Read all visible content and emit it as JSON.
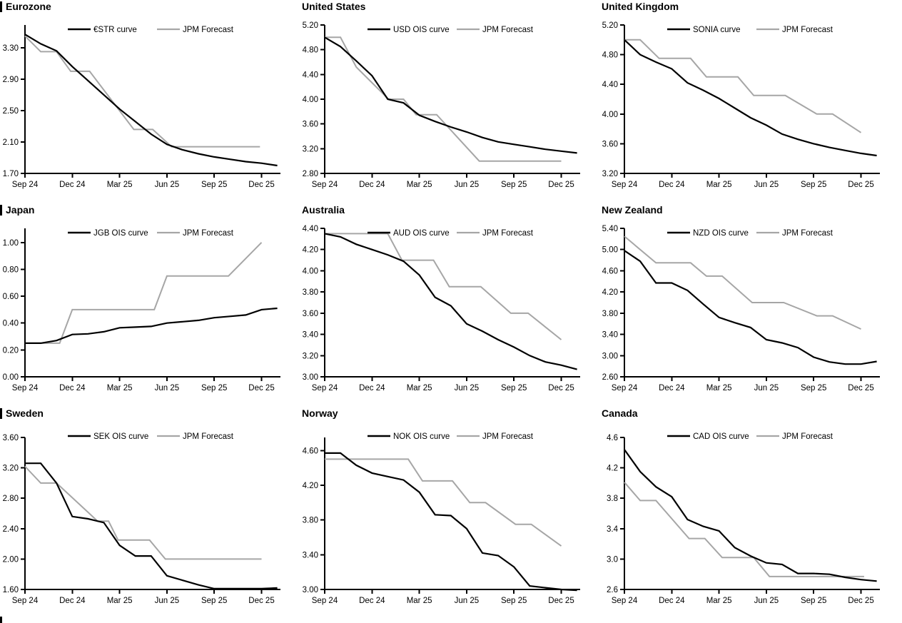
{
  "colors": {
    "actual": "#000000",
    "forecast": "#a6a6a6",
    "text": "#000000",
    "background": "#ffffff"
  },
  "forecast_label": "JPM Forecast",
  "x_axis": {
    "tick_labels": [
      "Sep 24",
      "Dec 24",
      "Mar 25",
      "Jun 25",
      "Sep 25",
      "Dec 25"
    ],
    "tick_positions": [
      0,
      3,
      6,
      9,
      12,
      15
    ],
    "unit": "months from Sep 2024"
  },
  "footer": {
    "next_section_marker": true
  },
  "chart_data": [
    {
      "type": "line",
      "title": "Eurozone",
      "section_bar": true,
      "ylim": [
        1.7,
        3.59
      ],
      "y_ticks": [
        3.3,
        2.9,
        2.5,
        2.1,
        1.7
      ],
      "y_tick_decimals": 2,
      "legend_position": "top",
      "grid": false,
      "series": [
        {
          "name": "€STR curve",
          "role": "actual",
          "x_step_months": 1,
          "values": [
            3.47,
            3.35,
            3.26,
            3.06,
            2.88,
            2.7,
            2.52,
            2.36,
            2.2,
            2.07,
            2.0,
            1.95,
            1.91,
            1.88,
            1.85,
            1.83,
            1.8
          ]
        },
        {
          "name": "JPM Forecast",
          "role": "forecast",
          "points": [
            [
              0,
              3.45
            ],
            [
              1,
              3.25
            ],
            [
              2,
              3.25
            ],
            [
              2.9,
              3.0
            ],
            [
              4.1,
              3.0
            ],
            [
              6.9,
              2.26
            ],
            [
              8.1,
              2.26
            ],
            [
              9.3,
              2.04
            ],
            [
              14.9,
              2.04
            ]
          ]
        }
      ]
    },
    {
      "type": "line",
      "title": "United States",
      "section_bar": false,
      "ylim": [
        2.8,
        5.2
      ],
      "y_ticks": [
        5.2,
        4.8,
        4.4,
        4.0,
        3.6,
        3.2,
        2.8
      ],
      "y_tick_decimals": 2,
      "legend_position": "top",
      "grid": false,
      "series": [
        {
          "name": "USD OIS curve",
          "role": "actual",
          "x_step_months": 1,
          "values": [
            5.0,
            4.85,
            4.62,
            4.38,
            4.0,
            3.94,
            3.74,
            3.64,
            3.55,
            3.47,
            3.38,
            3.31,
            3.27,
            3.23,
            3.19,
            3.16,
            3.13
          ]
        },
        {
          "name": "JPM Forecast",
          "role": "forecast",
          "points": [
            [
              0,
              5.0
            ],
            [
              1,
              5.0
            ],
            [
              2,
              4.52
            ],
            [
              4.05,
              4.0
            ],
            [
              5.0,
              4.0
            ],
            [
              5.8,
              3.75
            ],
            [
              7.1,
              3.75
            ],
            [
              9.8,
              3.0
            ],
            [
              15,
              3.0
            ]
          ]
        }
      ]
    },
    {
      "type": "line",
      "title": "United Kingdom",
      "section_bar": false,
      "ylim": [
        3.2,
        5.2
      ],
      "y_ticks": [
        5.2,
        4.8,
        4.4,
        4.0,
        3.6,
        3.2
      ],
      "y_tick_decimals": 2,
      "legend_position": "top",
      "grid": false,
      "series": [
        {
          "name": "SONIA curve",
          "role": "actual",
          "x_step_months": 1,
          "values": [
            5.0,
            4.8,
            4.7,
            4.61,
            4.42,
            4.32,
            4.21,
            4.08,
            3.95,
            3.85,
            3.73,
            3.66,
            3.6,
            3.55,
            3.51,
            3.47,
            3.44
          ]
        },
        {
          "name": "JPM Forecast",
          "role": "forecast",
          "points": [
            [
              0,
              5.0
            ],
            [
              1,
              5.0
            ],
            [
              2.2,
              4.75
            ],
            [
              4.2,
              4.75
            ],
            [
              5.2,
              4.5
            ],
            [
              7.2,
              4.5
            ],
            [
              8.2,
              4.25
            ],
            [
              10.2,
              4.25
            ],
            [
              12.2,
              4.0
            ],
            [
              13.2,
              4.0
            ],
            [
              15,
              3.75
            ]
          ]
        }
      ]
    },
    {
      "type": "line",
      "title": "Japan",
      "section_bar": true,
      "ylim": [
        0.0,
        1.105
      ],
      "y_ticks": [
        1.0,
        0.8,
        0.6,
        0.4,
        0.2,
        0.0
      ],
      "y_tick_decimals": 2,
      "legend_position": "top",
      "grid": false,
      "series": [
        {
          "name": "JGB OIS curve",
          "role": "actual",
          "x_step_months": 1,
          "values": [
            0.25,
            0.25,
            0.27,
            0.315,
            0.32,
            0.335,
            0.365,
            0.37,
            0.375,
            0.4,
            0.41,
            0.42,
            0.44,
            0.45,
            0.46,
            0.5,
            0.51
          ]
        },
        {
          "name": "JPM Forecast",
          "role": "forecast",
          "points": [
            [
              0,
              0.25
            ],
            [
              2.2,
              0.25
            ],
            [
              3,
              0.5
            ],
            [
              8.2,
              0.5
            ],
            [
              9,
              0.75
            ],
            [
              12.9,
              0.75
            ],
            [
              15,
              1.0
            ]
          ]
        }
      ]
    },
    {
      "type": "line",
      "title": "Australia",
      "section_bar": false,
      "ylim": [
        3.0,
        4.4
      ],
      "y_ticks": [
        4.4,
        4.2,
        4.0,
        3.8,
        3.6,
        3.4,
        3.2,
        3.0
      ],
      "y_tick_decimals": 2,
      "legend_position": "top",
      "grid": false,
      "series": [
        {
          "name": "AUD OIS curve",
          "role": "actual",
          "x_step_months": 1,
          "values": [
            4.35,
            4.32,
            4.25,
            4.2,
            4.15,
            4.09,
            3.96,
            3.75,
            3.67,
            3.5,
            3.43,
            3.35,
            3.28,
            3.2,
            3.14,
            3.11,
            3.07
          ]
        },
        {
          "name": "JPM Forecast",
          "role": "forecast",
          "points": [
            [
              0,
              4.35
            ],
            [
              4.0,
              4.35
            ],
            [
              4.9,
              4.1
            ],
            [
              6.9,
              4.1
            ],
            [
              7.9,
              3.85
            ],
            [
              9.9,
              3.85
            ],
            [
              11.8,
              3.6
            ],
            [
              12.9,
              3.6
            ],
            [
              15,
              3.35
            ]
          ]
        }
      ]
    },
    {
      "type": "line",
      "title": "New Zealand",
      "section_bar": false,
      "ylim": [
        2.6,
        5.4
      ],
      "y_ticks": [
        5.4,
        5.0,
        4.6,
        4.2,
        3.8,
        3.4,
        3.0,
        2.6
      ],
      "y_tick_decimals": 2,
      "legend_position": "top",
      "grid": false,
      "series": [
        {
          "name": "NZD OIS curve",
          "role": "actual",
          "x_step_months": 1,
          "values": [
            4.98,
            4.78,
            4.37,
            4.37,
            4.23,
            3.97,
            3.72,
            3.62,
            3.53,
            3.3,
            3.24,
            3.15,
            2.97,
            2.88,
            2.84,
            2.84,
            2.89
          ]
        },
        {
          "name": "JPM Forecast",
          "role": "forecast",
          "points": [
            [
              0,
              5.25
            ],
            [
              2,
              4.75
            ],
            [
              4.2,
              4.75
            ],
            [
              5.2,
              4.5
            ],
            [
              6.2,
              4.5
            ],
            [
              8.1,
              4.0
            ],
            [
              10.1,
              4.0
            ],
            [
              12.2,
              3.75
            ],
            [
              13.2,
              3.75
            ],
            [
              15,
              3.5
            ]
          ]
        }
      ]
    },
    {
      "type": "line",
      "title": "Sweden",
      "section_bar": true,
      "ylim": [
        1.6,
        3.6
      ],
      "y_ticks": [
        3.6,
        3.2,
        2.8,
        2.4,
        2.0,
        1.6
      ],
      "y_tick_decimals": 2,
      "legend_position": "top",
      "grid": false,
      "series": [
        {
          "name": "SEK OIS curve",
          "role": "actual",
          "x_step_months": 1,
          "values": [
            3.26,
            3.26,
            3.0,
            2.56,
            2.53,
            2.48,
            2.18,
            2.04,
            2.04,
            1.78,
            1.72,
            1.66,
            1.61,
            1.61,
            1.61,
            1.61,
            1.62
          ]
        },
        {
          "name": "JPM Forecast",
          "role": "forecast",
          "points": [
            [
              0,
              3.22
            ],
            [
              1,
              3.0
            ],
            [
              2,
              3.0
            ],
            [
              4.6,
              2.5
            ],
            [
              5.3,
              2.5
            ],
            [
              5.9,
              2.25
            ],
            [
              7.9,
              2.25
            ],
            [
              8.9,
              2.0
            ],
            [
              15,
              2.0
            ]
          ]
        }
      ]
    },
    {
      "type": "line",
      "title": "Norway",
      "section_bar": false,
      "ylim": [
        3.0,
        4.75
      ],
      "y_ticks": [
        4.6,
        4.2,
        3.8,
        3.4,
        3.0
      ],
      "y_tick_decimals": 2,
      "legend_position": "top",
      "grid": false,
      "series": [
        {
          "name": "NOK OIS curve",
          "role": "actual",
          "x_step_months": 1,
          "values": [
            4.57,
            4.57,
            4.43,
            4.34,
            4.3,
            4.26,
            4.12,
            3.86,
            3.85,
            3.7,
            3.42,
            3.39,
            3.26,
            3.04,
            3.02,
            3.0,
            2.99
          ]
        },
        {
          "name": "JPM Forecast",
          "role": "forecast",
          "points": [
            [
              0,
              4.5
            ],
            [
              5.3,
              4.5
            ],
            [
              6.2,
              4.25
            ],
            [
              8.1,
              4.25
            ],
            [
              9.2,
              4.0
            ],
            [
              10.2,
              4.0
            ],
            [
              12.1,
              3.75
            ],
            [
              13.1,
              3.75
            ],
            [
              15,
              3.5
            ]
          ]
        }
      ]
    },
    {
      "type": "line",
      "title": "Canada",
      "section_bar": false,
      "ylim": [
        2.6,
        4.6
      ],
      "y_ticks": [
        4.6,
        4.2,
        3.8,
        3.4,
        3.0,
        2.6
      ],
      "y_tick_decimals": 1,
      "legend_position": "top",
      "grid": false,
      "series": [
        {
          "name": "CAD OIS curve",
          "role": "actual",
          "x_step_months": 1,
          "values": [
            4.44,
            4.15,
            3.95,
            3.82,
            3.52,
            3.43,
            3.37,
            3.15,
            3.04,
            2.95,
            2.93,
            2.81,
            2.81,
            2.8,
            2.76,
            2.73,
            2.71
          ]
        },
        {
          "name": "JPM Forecast",
          "role": "forecast",
          "points": [
            [
              0,
              4.01
            ],
            [
              1,
              3.77
            ],
            [
              2,
              3.77
            ],
            [
              4.1,
              3.27
            ],
            [
              5.1,
              3.27
            ],
            [
              6.2,
              3.02
            ],
            [
              8.2,
              3.02
            ],
            [
              9.2,
              2.77
            ],
            [
              15.2,
              2.77
            ]
          ]
        }
      ]
    }
  ]
}
